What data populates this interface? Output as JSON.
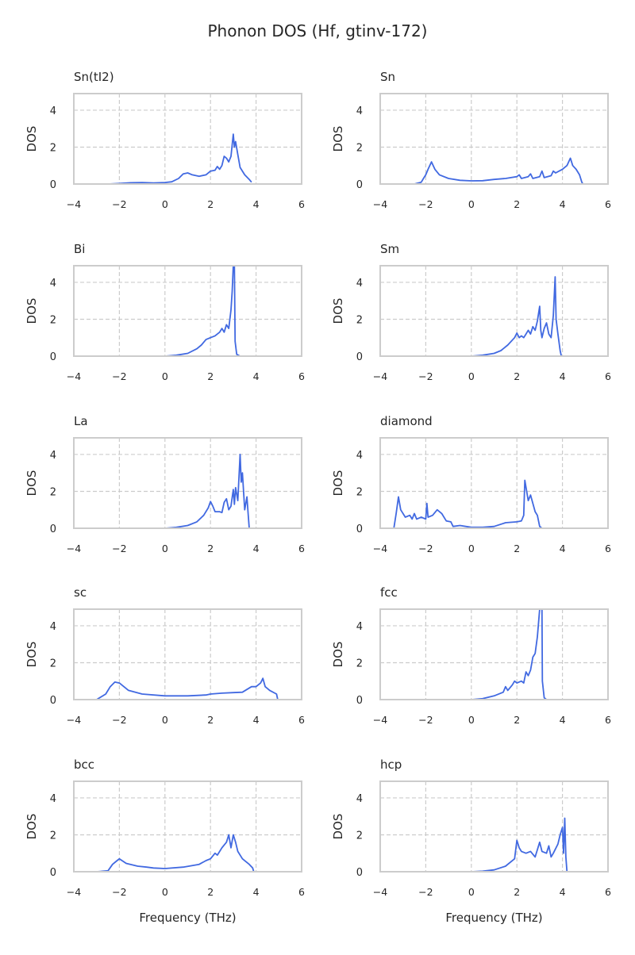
{
  "chart_data": {
    "type": "line",
    "title": "Phonon DOS (Hf, gtinv-172)",
    "xlabel": "Frequency (THz)",
    "ylabel": "DOS",
    "xlim": [
      -4,
      6
    ],
    "ylim": [
      0,
      4.9
    ],
    "xticks": [
      "−4",
      "−2",
      "0",
      "2",
      "4",
      "6"
    ],
    "xtick_values": [
      -4,
      -2,
      0,
      2,
      4,
      6
    ],
    "yticks": [
      "0",
      "2",
      "4"
    ],
    "ytick_values": [
      0,
      2,
      4
    ],
    "grid": true,
    "line_color": "#4169e1",
    "panels": [
      {
        "name": "Sn(tI2)",
        "points": [
          [
            -2.5,
            0
          ],
          [
            -2,
            0.03
          ],
          [
            -1.5,
            0.07
          ],
          [
            -1,
            0.08
          ],
          [
            -0.5,
            0.06
          ],
          [
            0,
            0.08
          ],
          [
            0.3,
            0.12
          ],
          [
            0.6,
            0.3
          ],
          [
            0.8,
            0.55
          ],
          [
            1,
            0.6
          ],
          [
            1.2,
            0.5
          ],
          [
            1.5,
            0.42
          ],
          [
            1.8,
            0.5
          ],
          [
            2,
            0.7
          ],
          [
            2.2,
            0.75
          ],
          [
            2.3,
            0.95
          ],
          [
            2.4,
            0.8
          ],
          [
            2.5,
            1.0
          ],
          [
            2.6,
            1.5
          ],
          [
            2.7,
            1.4
          ],
          [
            2.8,
            1.2
          ],
          [
            2.9,
            1.5
          ],
          [
            3.0,
            2.7
          ],
          [
            3.05,
            2.0
          ],
          [
            3.1,
            2.3
          ],
          [
            3.2,
            1.6
          ],
          [
            3.3,
            0.9
          ],
          [
            3.5,
            0.5
          ],
          [
            3.7,
            0.25
          ],
          [
            3.8,
            0.1
          ]
        ]
      },
      {
        "name": "Sn",
        "points": [
          [
            -2.5,
            0
          ],
          [
            -2.2,
            0.1
          ],
          [
            -2.1,
            0.3
          ],
          [
            -2,
            0.5
          ],
          [
            -1.9,
            0.8
          ],
          [
            -1.75,
            1.2
          ],
          [
            -1.6,
            0.8
          ],
          [
            -1.4,
            0.5
          ],
          [
            -1,
            0.3
          ],
          [
            -0.5,
            0.2
          ],
          [
            0,
            0.17
          ],
          [
            0.5,
            0.18
          ],
          [
            1,
            0.25
          ],
          [
            1.5,
            0.3
          ],
          [
            2,
            0.4
          ],
          [
            2.1,
            0.5
          ],
          [
            2.2,
            0.3
          ],
          [
            2.5,
            0.4
          ],
          [
            2.6,
            0.55
          ],
          [
            2.7,
            0.3
          ],
          [
            3,
            0.4
          ],
          [
            3.1,
            0.7
          ],
          [
            3.2,
            0.35
          ],
          [
            3.5,
            0.45
          ],
          [
            3.6,
            0.7
          ],
          [
            3.7,
            0.6
          ],
          [
            4,
            0.8
          ],
          [
            4.2,
            1.0
          ],
          [
            4.35,
            1.4
          ],
          [
            4.45,
            1.0
          ],
          [
            4.6,
            0.8
          ],
          [
            4.75,
            0.5
          ],
          [
            4.85,
            0.1
          ],
          [
            4.9,
            0
          ]
        ]
      },
      {
        "name": "Bi",
        "points": [
          [
            0,
            0
          ],
          [
            0.5,
            0.05
          ],
          [
            1,
            0.15
          ],
          [
            1.4,
            0.4
          ],
          [
            1.6,
            0.6
          ],
          [
            1.8,
            0.9
          ],
          [
            2,
            1.0
          ],
          [
            2.2,
            1.1
          ],
          [
            2.4,
            1.3
          ],
          [
            2.5,
            1.5
          ],
          [
            2.6,
            1.3
          ],
          [
            2.7,
            1.7
          ],
          [
            2.8,
            1.5
          ],
          [
            2.9,
            2.5
          ],
          [
            2.95,
            3.5
          ],
          [
            3.0,
            4.9
          ],
          [
            3.05,
            4.9
          ],
          [
            3.08,
            0.8
          ],
          [
            3.15,
            0.1
          ],
          [
            3.3,
            0
          ]
        ]
      },
      {
        "name": "Sm",
        "points": [
          [
            0,
            0
          ],
          [
            0.5,
            0.05
          ],
          [
            1,
            0.15
          ],
          [
            1.3,
            0.3
          ],
          [
            1.6,
            0.6
          ],
          [
            1.9,
            1.0
          ],
          [
            2.0,
            1.25
          ],
          [
            2.1,
            1.0
          ],
          [
            2.2,
            1.1
          ],
          [
            2.3,
            1.0
          ],
          [
            2.4,
            1.2
          ],
          [
            2.5,
            1.4
          ],
          [
            2.6,
            1.2
          ],
          [
            2.7,
            1.6
          ],
          [
            2.8,
            1.4
          ],
          [
            2.9,
            1.9
          ],
          [
            3.0,
            2.7
          ],
          [
            3.05,
            1.4
          ],
          [
            3.1,
            1.0
          ],
          [
            3.2,
            1.5
          ],
          [
            3.3,
            1.8
          ],
          [
            3.4,
            1.2
          ],
          [
            3.5,
            1.0
          ],
          [
            3.6,
            2.2
          ],
          [
            3.68,
            4.3
          ],
          [
            3.72,
            2.0
          ],
          [
            3.8,
            1.2
          ],
          [
            3.9,
            0.3
          ],
          [
            3.95,
            0
          ]
        ]
      },
      {
        "name": "La",
        "points": [
          [
            0,
            0
          ],
          [
            0.5,
            0.05
          ],
          [
            1,
            0.15
          ],
          [
            1.4,
            0.35
          ],
          [
            1.7,
            0.7
          ],
          [
            1.9,
            1.1
          ],
          [
            2.0,
            1.45
          ],
          [
            2.1,
            1.2
          ],
          [
            2.2,
            0.9
          ],
          [
            2.4,
            0.9
          ],
          [
            2.5,
            0.85
          ],
          [
            2.6,
            1.4
          ],
          [
            2.7,
            1.6
          ],
          [
            2.8,
            1.0
          ],
          [
            2.9,
            1.2
          ],
          [
            3.0,
            2.1
          ],
          [
            3.05,
            1.3
          ],
          [
            3.1,
            2.2
          ],
          [
            3.2,
            1.5
          ],
          [
            3.3,
            4.0
          ],
          [
            3.35,
            2.5
          ],
          [
            3.4,
            3.0
          ],
          [
            3.5,
            1.0
          ],
          [
            3.6,
            1.7
          ],
          [
            3.65,
            0.8
          ],
          [
            3.7,
            0
          ],
          [
            4,
            0
          ]
        ]
      },
      {
        "name": "diamond",
        "points": [
          [
            -4,
            0
          ],
          [
            -3.4,
            0
          ],
          [
            -3.3,
            0.8
          ],
          [
            -3.2,
            1.7
          ],
          [
            -3.1,
            1.0
          ],
          [
            -2.9,
            0.6
          ],
          [
            -2.7,
            0.7
          ],
          [
            -2.6,
            0.5
          ],
          [
            -2.5,
            0.8
          ],
          [
            -2.4,
            0.5
          ],
          [
            -2.2,
            0.6
          ],
          [
            -2.0,
            0.5
          ],
          [
            -1.95,
            1.35
          ],
          [
            -1.9,
            0.6
          ],
          [
            -1.7,
            0.7
          ],
          [
            -1.5,
            1.0
          ],
          [
            -1.3,
            0.8
          ],
          [
            -1.1,
            0.4
          ],
          [
            -0.9,
            0.35
          ],
          [
            -0.8,
            0.1
          ],
          [
            -0.5,
            0.15
          ],
          [
            0,
            0.05
          ],
          [
            0.5,
            0.05
          ],
          [
            1,
            0.1
          ],
          [
            1.5,
            0.3
          ],
          [
            2,
            0.35
          ],
          [
            2.2,
            0.4
          ],
          [
            2.3,
            0.7
          ],
          [
            2.35,
            2.6
          ],
          [
            2.5,
            1.5
          ],
          [
            2.6,
            1.8
          ],
          [
            2.8,
            0.9
          ],
          [
            2.9,
            0.7
          ],
          [
            3.0,
            0.1
          ],
          [
            3.1,
            0
          ],
          [
            3.5,
            0
          ]
        ]
      },
      {
        "name": "sc",
        "points": [
          [
            -3.5,
            0
          ],
          [
            -3,
            0
          ],
          [
            -2.6,
            0.3
          ],
          [
            -2.4,
            0.7
          ],
          [
            -2.2,
            0.95
          ],
          [
            -2,
            0.9
          ],
          [
            -1.6,
            0.5
          ],
          [
            -1,
            0.3
          ],
          [
            0,
            0.2
          ],
          [
            1,
            0.2
          ],
          [
            1.8,
            0.25
          ],
          [
            2,
            0.3
          ],
          [
            2.5,
            0.35
          ],
          [
            3,
            0.38
          ],
          [
            3.4,
            0.4
          ],
          [
            3.6,
            0.55
          ],
          [
            3.8,
            0.7
          ],
          [
            4,
            0.7
          ],
          [
            4.2,
            0.9
          ],
          [
            4.3,
            1.15
          ],
          [
            4.4,
            0.7
          ],
          [
            4.6,
            0.5
          ],
          [
            4.9,
            0.3
          ],
          [
            4.95,
            0
          ]
        ]
      },
      {
        "name": "fcc",
        "points": [
          [
            0,
            0
          ],
          [
            0.5,
            0.05
          ],
          [
            1,
            0.2
          ],
          [
            1.4,
            0.4
          ],
          [
            1.5,
            0.7
          ],
          [
            1.6,
            0.5
          ],
          [
            1.8,
            0.8
          ],
          [
            1.9,
            1.0
          ],
          [
            2.0,
            0.9
          ],
          [
            2.2,
            1.0
          ],
          [
            2.3,
            0.9
          ],
          [
            2.4,
            1.5
          ],
          [
            2.5,
            1.3
          ],
          [
            2.6,
            1.6
          ],
          [
            2.7,
            2.3
          ],
          [
            2.8,
            2.5
          ],
          [
            2.9,
            3.4
          ],
          [
            3.0,
            4.9
          ],
          [
            3.1,
            4.9
          ],
          [
            3.12,
            1.0
          ],
          [
            3.2,
            0.1
          ],
          [
            3.3,
            0
          ]
        ]
      },
      {
        "name": "bcc",
        "points": [
          [
            -3,
            0
          ],
          [
            -2.5,
            0.05
          ],
          [
            -2.3,
            0.4
          ],
          [
            -2.1,
            0.6
          ],
          [
            -2,
            0.7
          ],
          [
            -1.7,
            0.45
          ],
          [
            -1.2,
            0.3
          ],
          [
            -0.8,
            0.25
          ],
          [
            -0.5,
            0.2
          ],
          [
            0,
            0.17
          ],
          [
            0.8,
            0.25
          ],
          [
            1.5,
            0.4
          ],
          [
            1.8,
            0.6
          ],
          [
            2.0,
            0.7
          ],
          [
            2.2,
            1.0
          ],
          [
            2.3,
            0.9
          ],
          [
            2.5,
            1.3
          ],
          [
            2.7,
            1.6
          ],
          [
            2.8,
            2.0
          ],
          [
            2.9,
            1.3
          ],
          [
            3.0,
            2.0
          ],
          [
            3.1,
            1.6
          ],
          [
            3.2,
            1.1
          ],
          [
            3.4,
            0.7
          ],
          [
            3.7,
            0.4
          ],
          [
            3.85,
            0.2
          ],
          [
            3.9,
            0
          ]
        ]
      },
      {
        "name": "hcp",
        "points": [
          [
            0,
            0
          ],
          [
            0.5,
            0.03
          ],
          [
            1,
            0.1
          ],
          [
            1.5,
            0.3
          ],
          [
            1.9,
            0.7
          ],
          [
            2.0,
            1.7
          ],
          [
            2.1,
            1.3
          ],
          [
            2.2,
            1.1
          ],
          [
            2.4,
            1.0
          ],
          [
            2.6,
            1.1
          ],
          [
            2.8,
            0.8
          ],
          [
            3.0,
            1.6
          ],
          [
            3.1,
            1.1
          ],
          [
            3.3,
            1.0
          ],
          [
            3.4,
            1.4
          ],
          [
            3.5,
            0.8
          ],
          [
            3.6,
            1.0
          ],
          [
            3.8,
            1.5
          ],
          [
            3.9,
            2.0
          ],
          [
            4.0,
            2.4
          ],
          [
            4.05,
            1.0
          ],
          [
            4.1,
            2.9
          ],
          [
            4.15,
            0.8
          ],
          [
            4.2,
            0
          ]
        ]
      }
    ]
  }
}
